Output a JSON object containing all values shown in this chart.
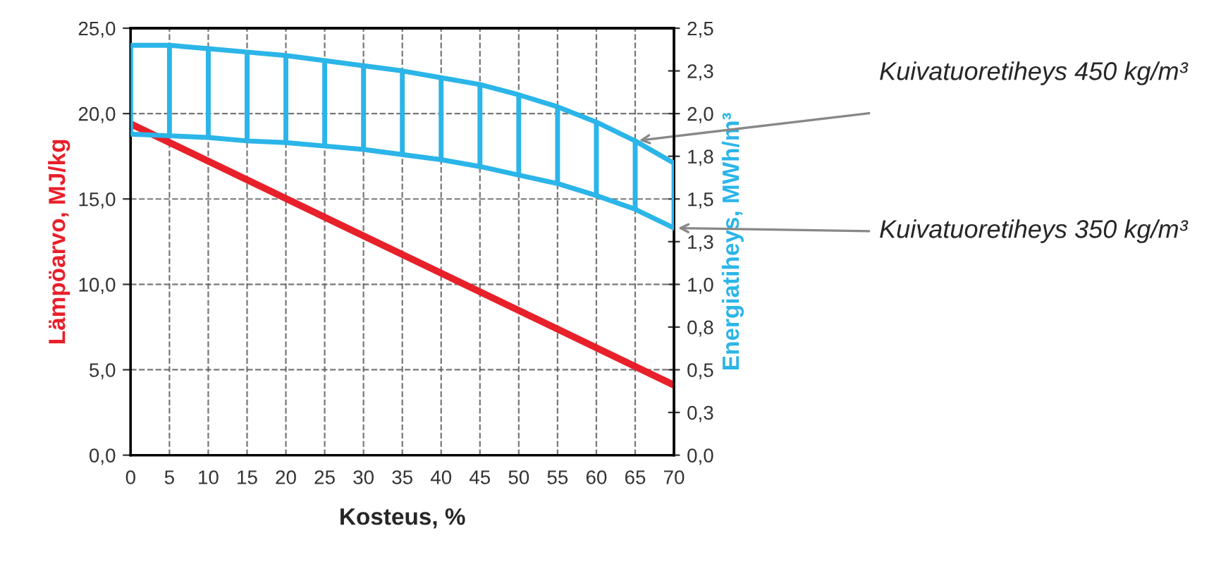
{
  "chart_data": {
    "type": "line",
    "xlabel": "Kosteus, %",
    "ylabel": "Lämpöarvo, MJ/kg",
    "y2label": "Energiatiheys, MWh/m³",
    "x": [
      0,
      5,
      10,
      15,
      20,
      25,
      30,
      35,
      40,
      45,
      50,
      55,
      60,
      65,
      70
    ],
    "series": [
      {
        "color": "#e8202a",
        "x": [
          0,
          70
        ],
        "values": [
          19.4,
          4.1
        ]
      },
      {
        "color": "#2bb5e8",
        "axis": "y2",
        "values": [
          2.4,
          2.4,
          2.38,
          2.36,
          2.34,
          2.31,
          2.28,
          2.25,
          2.21,
          2.17,
          2.11,
          2.04,
          1.95,
          1.84,
          1.71
        ],
        "errors": [
          [
            1.88,
            2.4
          ],
          [
            1.87,
            2.4
          ],
          [
            1.86,
            2.38
          ],
          [
            1.84,
            2.36
          ],
          [
            1.83,
            2.34
          ],
          [
            1.81,
            2.31
          ],
          [
            1.79,
            2.28
          ],
          [
            1.76,
            2.25
          ],
          [
            1.73,
            2.21
          ],
          [
            1.69,
            2.17
          ],
          [
            1.64,
            2.11
          ],
          [
            1.59,
            2.04
          ],
          [
            1.52,
            1.95
          ],
          [
            1.44,
            1.84
          ],
          [
            1.33,
            1.71
          ]
        ]
      },
      {
        "color": "#2bb5e8",
        "axis": "y2",
        "values": [
          1.88,
          1.87,
          1.86,
          1.84,
          1.83,
          1.81,
          1.79,
          1.76,
          1.73,
          1.69,
          1.64,
          1.59,
          1.52,
          1.44,
          1.33
        ]
      }
    ],
    "xlim": [
      0,
      70
    ],
    "xticks": [
      0,
      5,
      10,
      15,
      20,
      25,
      30,
      35,
      40,
      45,
      50,
      55,
      60,
      65,
      70
    ],
    "ylim": [
      0,
      25
    ],
    "yticks": [
      {
        "value": 0,
        "label": "0,0"
      },
      {
        "value": 5,
        "label": "5,0"
      },
      {
        "value": 10,
        "label": "10,0"
      },
      {
        "value": 15,
        "label": "15,0"
      },
      {
        "value": 20,
        "label": "20,0"
      },
      {
        "value": 25,
        "label": "25,0"
      }
    ],
    "y2lim": [
      0,
      2.5
    ],
    "y2ticks": [
      {
        "value": 0,
        "label": "0,0"
      },
      {
        "value": 0.25,
        "label": "0,3"
      },
      {
        "value": 0.5,
        "label": "0,5"
      },
      {
        "value": 0.75,
        "label": "0,8"
      },
      {
        "value": 1.0,
        "label": "1,0"
      },
      {
        "value": 1.25,
        "label": "1,3"
      },
      {
        "value": 1.5,
        "label": "1,5"
      },
      {
        "value": 1.75,
        "label": "1,8"
      },
      {
        "value": 2.0,
        "label": "2,0"
      },
      {
        "value": 2.25,
        "label": "2,3"
      },
      {
        "value": 2.5,
        "label": "2,5"
      }
    ],
    "grid": true,
    "line_style": "solid",
    "marker": "none",
    "annotations": [
      "Kuivatuoretiheys 450 kg/m³",
      "Kuivatuoretiheys 350 kg/m³"
    ]
  }
}
